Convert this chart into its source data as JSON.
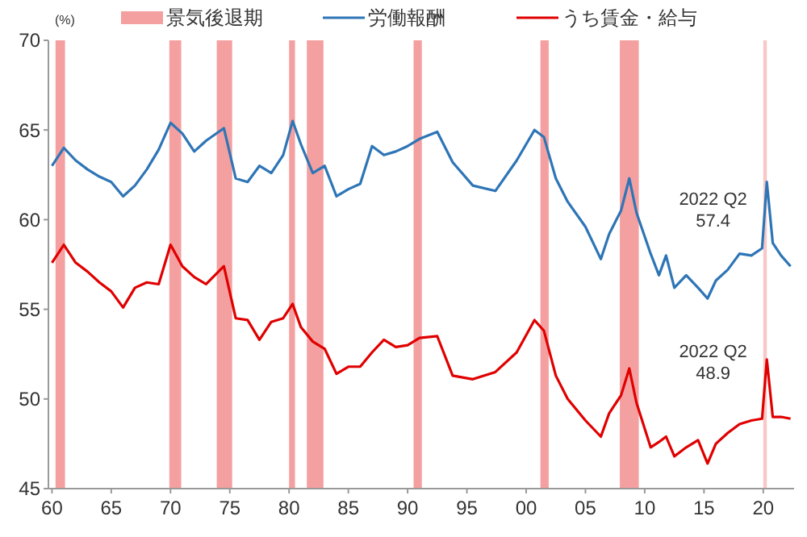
{
  "chart_data": {
    "type": "line",
    "ylabel": "(%)",
    "xlim": [
      1959.7,
      2022.6
    ],
    "ylim": [
      45,
      70
    ],
    "xticks": [
      {
        "value": 1960,
        "label": "60"
      },
      {
        "value": 1965,
        "label": "65"
      },
      {
        "value": 1970,
        "label": "70"
      },
      {
        "value": 1975,
        "label": "75"
      },
      {
        "value": 1980,
        "label": "80"
      },
      {
        "value": 1985,
        "label": "85"
      },
      {
        "value": 1990,
        "label": "90"
      },
      {
        "value": 1995,
        "label": "95"
      },
      {
        "value": 2000,
        "label": "00"
      },
      {
        "value": 2005,
        "label": "05"
      },
      {
        "value": 2010,
        "label": "10"
      },
      {
        "value": 2015,
        "label": "15"
      },
      {
        "value": 2020,
        "label": "20"
      }
    ],
    "yticks": [
      45,
      50,
      55,
      60,
      65,
      70
    ],
    "grid": false,
    "legend": "top",
    "x": [
      1960,
      1961,
      1962,
      1963,
      1964,
      1965,
      1966,
      1967,
      1968,
      1969,
      1970,
      1971,
      1972,
      1973,
      1974.5,
      1975.5,
      1976.5,
      1977.5,
      1978.5,
      1979.5,
      1980.3,
      1981,
      1982,
      1983,
      1984,
      1985,
      1986,
      1987,
      1988,
      1989,
      1990,
      1991,
      1992.5,
      1993.8,
      1995.5,
      1997.4,
      1999.2,
      2000.7,
      2001.5,
      2002.5,
      2003.5,
      2005,
      2006.3,
      2007,
      2008,
      2008.7,
      2009.3,
      2010.5,
      2011.2,
      2011.8,
      2012.5,
      2013.5,
      2014.5,
      2015.3,
      2016,
      2017,
      2018,
      2019,
      2019.9,
      2020.3,
      2020.8,
      2021.5,
      2022.3
    ],
    "series": [
      {
        "name": "労働報酬",
        "color": "#2e75b6",
        "values": [
          63.0,
          64.0,
          63.3,
          62.8,
          62.4,
          62.1,
          61.3,
          61.9,
          62.8,
          63.9,
          65.4,
          64.8,
          63.8,
          64.4,
          65.1,
          62.3,
          62.1,
          63.0,
          62.6,
          63.6,
          65.5,
          64.2,
          62.6,
          63.0,
          61.3,
          61.7,
          62.0,
          64.1,
          63.6,
          63.8,
          64.1,
          64.5,
          64.9,
          63.2,
          61.9,
          61.6,
          63.3,
          65.0,
          64.6,
          62.3,
          61.0,
          59.6,
          57.8,
          59.2,
          60.5,
          62.3,
          60.4,
          58.1,
          56.9,
          58.0,
          56.2,
          56.9,
          56.2,
          55.6,
          56.6,
          57.2,
          58.1,
          58.0,
          58.4,
          62.1,
          58.7,
          58.0,
          57.4
        ]
      },
      {
        "name": "うち賃金・給与",
        "color": "#e00000",
        "values": [
          57.6,
          58.6,
          57.6,
          57.1,
          56.5,
          56.0,
          55.1,
          56.2,
          56.5,
          56.4,
          58.6,
          57.4,
          56.8,
          56.4,
          57.4,
          54.5,
          54.4,
          53.3,
          54.3,
          54.5,
          55.3,
          54.0,
          53.2,
          52.8,
          51.4,
          51.8,
          51.8,
          52.6,
          53.3,
          52.9,
          53.0,
          53.4,
          53.5,
          51.3,
          51.1,
          51.5,
          52.6,
          54.4,
          53.8,
          51.3,
          50.0,
          48.8,
          47.9,
          49.2,
          50.2,
          51.7,
          49.8,
          47.3,
          47.6,
          47.9,
          46.8,
          47.3,
          47.7,
          46.4,
          47.5,
          48.1,
          48.6,
          48.8,
          48.9,
          52.2,
          49.0,
          49.0,
          48.9
        ]
      }
    ],
    "bands": [
      {
        "axis": "x",
        "from": 1960.3,
        "to": 1961.1,
        "label": "景気後退期",
        "color": "#f4a0a0"
      },
      {
        "axis": "x",
        "from": 1969.9,
        "to": 1970.9,
        "color": "#f4a0a0"
      },
      {
        "axis": "x",
        "from": 1973.9,
        "to": 1975.2,
        "color": "#f4a0a0"
      },
      {
        "axis": "x",
        "from": 1980.0,
        "to": 1980.5,
        "color": "#f4a0a0"
      },
      {
        "axis": "x",
        "from": 1981.5,
        "to": 1982.9,
        "color": "#f4a0a0"
      },
      {
        "axis": "x",
        "from": 1990.5,
        "to": 1991.2,
        "color": "#f4a0a0"
      },
      {
        "axis": "x",
        "from": 2001.2,
        "to": 2001.9,
        "color": "#f4a0a0"
      },
      {
        "axis": "x",
        "from": 2007.9,
        "to": 2009.5,
        "color": "#f4a0a0"
      },
      {
        "axis": "x",
        "from": 2020.0,
        "to": 2020.3,
        "color": "#f8c8c8"
      }
    ],
    "annotations": [
      "2022 Q2\n57.4",
      "2022 Q2\n48.9"
    ]
  }
}
